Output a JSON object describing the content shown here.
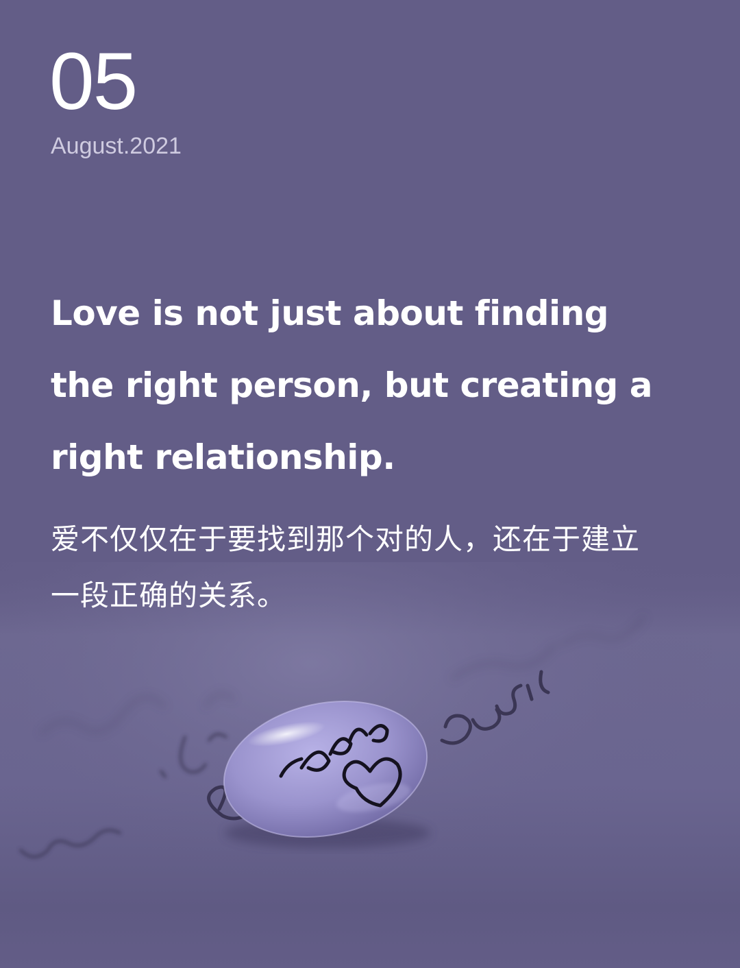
{
  "date": {
    "day": "05",
    "month_year": "August.2021"
  },
  "quote": {
    "english": "Love is not just about finding the right person, but creating a right relationship.",
    "chinese": "爱不仅仅在于要找到那个对的人，还在于建立一段正确的关系。"
  },
  "photo": {
    "droplet_text": "Love",
    "paper_text": "you, I",
    "colors": {
      "background": "#635d87",
      "paper": "#6f6a92",
      "droplet": "#9d96cf"
    }
  }
}
